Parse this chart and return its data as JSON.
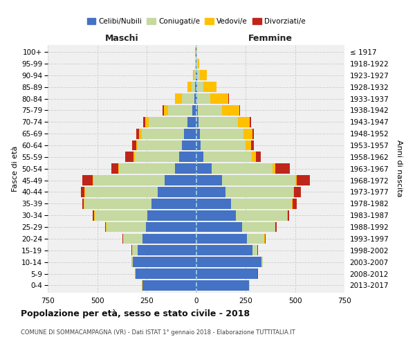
{
  "age_groups": [
    "0-4",
    "5-9",
    "10-14",
    "15-19",
    "20-24",
    "25-29",
    "30-34",
    "35-39",
    "40-44",
    "45-49",
    "50-54",
    "55-59",
    "60-64",
    "65-69",
    "70-74",
    "75-79",
    "80-84",
    "85-89",
    "90-94",
    "95-99",
    "100+"
  ],
  "birth_years": [
    "2013-2017",
    "2008-2012",
    "2003-2007",
    "1998-2002",
    "1993-1997",
    "1988-1992",
    "1983-1987",
    "1978-1982",
    "1973-1977",
    "1968-1972",
    "1963-1967",
    "1958-1962",
    "1953-1957",
    "1948-1952",
    "1943-1947",
    "1938-1942",
    "1933-1937",
    "1928-1932",
    "1923-1927",
    "1918-1922",
    "≤ 1917"
  ],
  "colors": {
    "celibi": "#4472c4",
    "coniugati": "#c5d9a0",
    "vedovi": "#ffc000",
    "divorziati": "#c0251a"
  },
  "males": {
    "celibi": [
      270,
      305,
      320,
      295,
      270,
      255,
      245,
      225,
      195,
      160,
      105,
      85,
      70,
      60,
      45,
      18,
      8,
      5,
      3,
      2,
      2
    ],
    "coniugati": [
      2,
      2,
      5,
      28,
      98,
      198,
      268,
      340,
      365,
      360,
      285,
      225,
      225,
      215,
      195,
      125,
      62,
      18,
      5,
      2,
      1
    ],
    "vedovi": [
      1,
      1,
      1,
      1,
      2,
      2,
      2,
      2,
      3,
      4,
      4,
      8,
      9,
      14,
      18,
      20,
      35,
      20,
      8,
      2,
      1
    ],
    "divorziati": [
      1,
      1,
      1,
      2,
      2,
      4,
      7,
      8,
      18,
      52,
      35,
      42,
      20,
      12,
      10,
      5,
      3,
      2,
      1,
      0,
      0
    ]
  },
  "females": {
    "nubili": [
      268,
      308,
      332,
      285,
      258,
      232,
      202,
      178,
      148,
      130,
      78,
      38,
      22,
      18,
      12,
      8,
      6,
      5,
      4,
      2,
      2
    ],
    "coniugate": [
      2,
      2,
      5,
      25,
      88,
      168,
      258,
      308,
      342,
      370,
      310,
      242,
      228,
      222,
      200,
      122,
      65,
      32,
      15,
      5,
      1
    ],
    "vedove": [
      1,
      1,
      1,
      1,
      1,
      2,
      2,
      3,
      5,
      9,
      14,
      22,
      28,
      44,
      60,
      88,
      92,
      65,
      35,
      8,
      2
    ],
    "divorziate": [
      1,
      1,
      1,
      2,
      3,
      5,
      8,
      20,
      35,
      65,
      72,
      25,
      15,
      8,
      5,
      4,
      3,
      2,
      1,
      0,
      0
    ]
  },
  "xlim": 750,
  "title": "Popolazione per età, sesso e stato civile - 2018",
  "subtitle": "COMUNE DI SOMMACAMPAGNA (VR) - Dati ISTAT 1° gennaio 2018 - Elaborazione TUTTITALIA.IT",
  "ylabel_left": "Fasce di età",
  "ylabel_right": "Anni di nascita",
  "xlabel_maschi": "Maschi",
  "xlabel_femmine": "Femmine",
  "bg_color": "#f0f0f0",
  "grid_color": "#cccccc",
  "legend_labels": [
    "Celibi/Nubili",
    "Coniugati/e",
    "Vedovi/e",
    "Divorziati/e"
  ]
}
